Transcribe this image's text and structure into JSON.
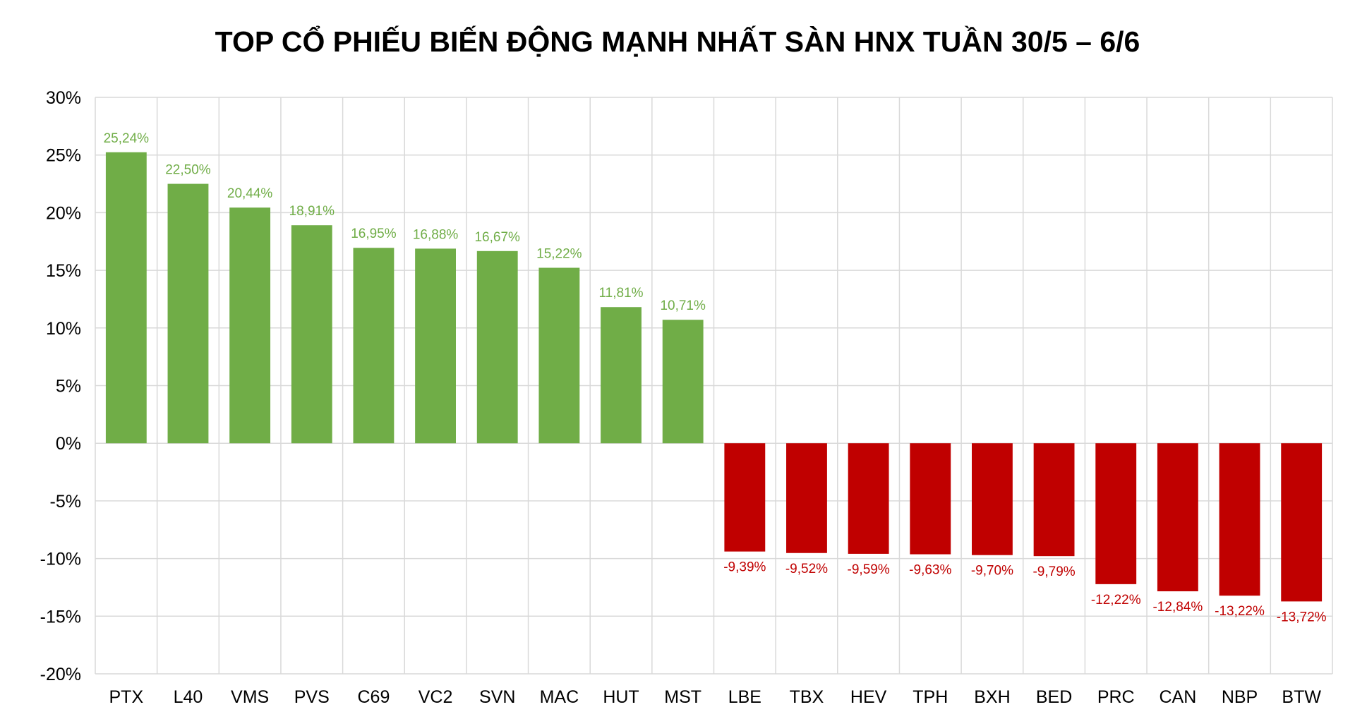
{
  "chart_data": {
    "type": "bar",
    "title": "TOP CỔ PHIẾU BIẾN ĐỘNG MẠNH NHẤT SÀN HNX TUẦN 30/5 – 6/6",
    "xlabel": "",
    "ylabel": "",
    "ylim": [
      -20,
      30
    ],
    "ytick_values": [
      30,
      25,
      20,
      15,
      10,
      5,
      0,
      -5,
      -10,
      -15,
      -20
    ],
    "ytick_labels": [
      "30%",
      "25%",
      "20%",
      "15%",
      "10%",
      "5%",
      "0%",
      "-5%",
      "-10%",
      "-15%",
      "-20%"
    ],
    "grid": true,
    "legend": "none",
    "categories": [
      "PTX",
      "L40",
      "VMS",
      "PVS",
      "C69",
      "VC2",
      "SVN",
      "MAC",
      "HUT",
      "MST",
      "LBE",
      "TBX",
      "HEV",
      "TPH",
      "BXH",
      "BED",
      "PRC",
      "CAN",
      "NBP",
      "BTW"
    ],
    "values": [
      25.24,
      22.5,
      20.44,
      18.91,
      16.95,
      16.88,
      16.67,
      15.22,
      11.81,
      10.71,
      -9.39,
      -9.52,
      -9.59,
      -9.63,
      -9.7,
      -9.79,
      -12.22,
      -12.84,
      -13.22,
      -13.72
    ],
    "data_labels": [
      "25,24%",
      "22,50%",
      "20,44%",
      "18,91%",
      "16,95%",
      "16,88%",
      "16,67%",
      "15,22%",
      "11,81%",
      "10,71%",
      "-9,39%",
      "-9,52%",
      "-9,59%",
      "-9,63%",
      "-9,70%",
      "-9,79%",
      "-12,22%",
      "-12,84%",
      "-13,22%",
      "-13,72%"
    ],
    "colors": {
      "positive": "#70ad47",
      "negative": "#c00000",
      "grid": "#d9d9d9"
    }
  }
}
